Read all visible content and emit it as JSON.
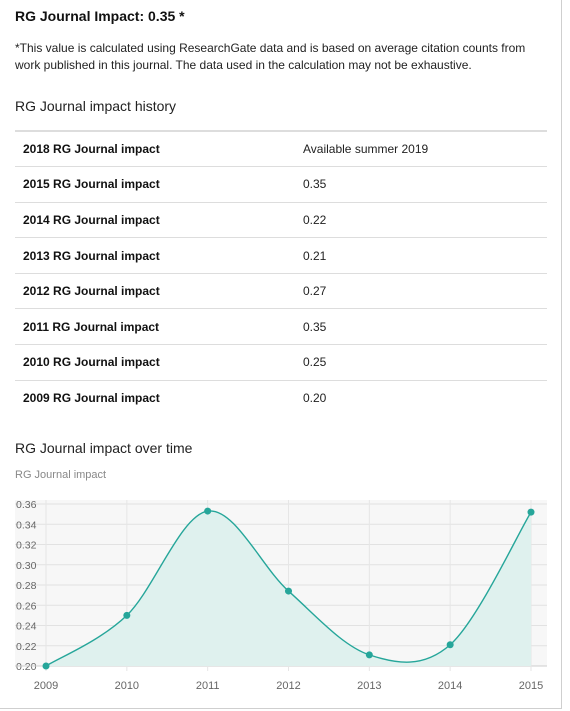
{
  "header": {
    "title": "RG Journal Impact: 0.35 *",
    "note": "*This value is calculated using ResearchGate data and is based on average citation counts from work published in this journal. The data used in the calculation may not be exhaustive."
  },
  "history": {
    "title": "RG Journal impact history",
    "rows": [
      {
        "label": "2018 RG Journal impact",
        "value": "Available summer 2019"
      },
      {
        "label": "2015 RG Journal impact",
        "value": "0.35"
      },
      {
        "label": "2014 RG Journal impact",
        "value": "0.22"
      },
      {
        "label": "2013 RG Journal impact",
        "value": "0.21"
      },
      {
        "label": "2012 RG Journal impact",
        "value": "0.27"
      },
      {
        "label": "2011 RG Journal impact",
        "value": "0.35"
      },
      {
        "label": "2010 RG Journal impact",
        "value": "0.25"
      },
      {
        "label": "2009 RG Journal impact",
        "value": "0.20"
      }
    ]
  },
  "over_time": {
    "title": "RG Journal impact over time"
  },
  "chart_data": {
    "type": "area",
    "title": "RG Journal impact over time",
    "ylabel": "RG Journal impact",
    "xlabel": "",
    "categories": [
      "2009",
      "2010",
      "2011",
      "2012",
      "2013",
      "2014",
      "2015"
    ],
    "series": [
      {
        "values": [
          0.2,
          0.25,
          0.353,
          0.274,
          0.211,
          0.221,
          0.352
        ]
      }
    ],
    "ylim": [
      0.2,
      0.36
    ],
    "yticks": [
      "0.20",
      "0.22",
      "0.24",
      "0.26",
      "0.28",
      "0.30",
      "0.32",
      "0.34",
      "0.36"
    ],
    "grid": true,
    "legend": "none",
    "colors": {
      "line": "#26a69a",
      "fill": "#dff1ee",
      "plot_bg": "#f7f7f7",
      "grid": "#e2e2e2",
      "tick_text": "#666666"
    }
  }
}
